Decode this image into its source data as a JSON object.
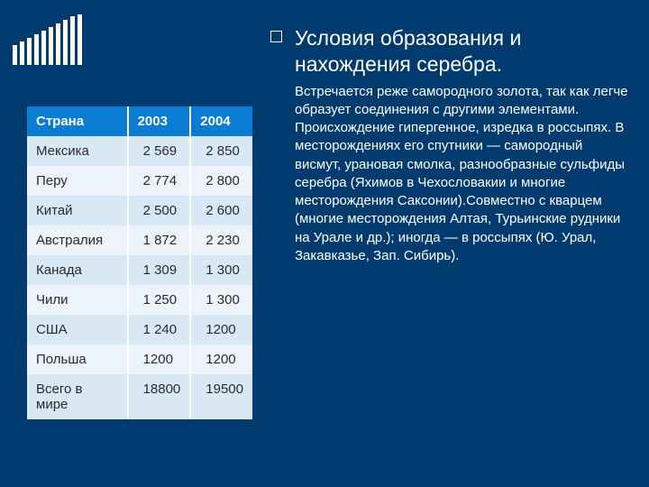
{
  "decor": {
    "stripe_heights": [
      22,
      26,
      30,
      34,
      38,
      42,
      46,
      50,
      54,
      56
    ],
    "stripe_color": "#ffffff",
    "background": "#003b6f"
  },
  "text": {
    "heading": "Условия образования и нахождения серебра.",
    "body": "Встречается реже самородного золота, так как легче образует соединения с другими элементами. Происхождение гипергенное, изредка в россыпях. В месторождениях его спутники — самородный висмут, урановая смолка, разнообразные сульфиды серебра (Яхимов в Чехословакии и многие месторождения Саксонии).Совместно с кварцем (многие месторождения Алтая, Турьинские рудники на Урале и др.); иногда — в россыпях (Ю. Урал, Закавказье, Зап. Сибирь)."
  },
  "table": {
    "header_bg": "#0a7cd4",
    "row_odd_bg": "#d9e8f5",
    "row_even_bg": "#ecf3fa",
    "columns": [
      "Страна",
      "2003",
      "2004"
    ],
    "rows": [
      [
        "Мексика",
        "2 569",
        "2 850"
      ],
      [
        "Перу",
        "2 774",
        "2 800"
      ],
      [
        "Китай",
        "2 500",
        "2 600"
      ],
      [
        "Австралия",
        "1 872",
        "2 230"
      ],
      [
        "Канада",
        "1 309",
        "1 300"
      ],
      [
        "Чили",
        "1 250",
        "1 300"
      ],
      [
        "США",
        "1 240",
        "1200"
      ],
      [
        "Польша",
        "1200",
        "1200"
      ],
      [
        "Всего в мире",
        "18800",
        "19500"
      ]
    ]
  }
}
